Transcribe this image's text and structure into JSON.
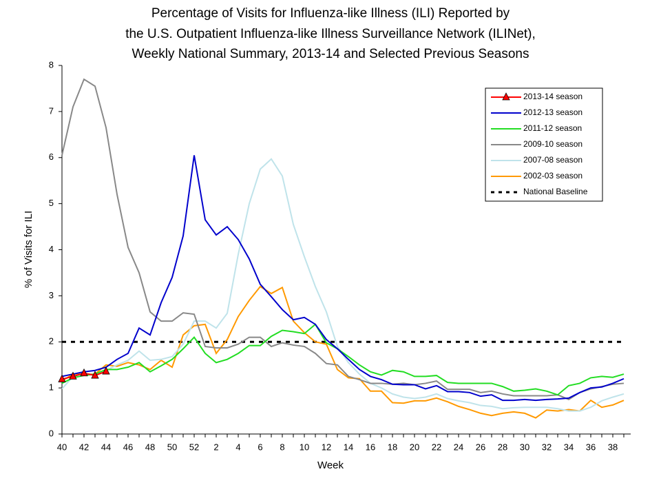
{
  "chart_data": {
    "type": "line",
    "title": [
      "Percentage of Visits for Influenza-like Illness (ILI) Reported by",
      "the U.S. Outpatient Influenza-like Illness Surveillance Network (ILINet),",
      "Weekly National Summary, 2013-14 and Selected Previous Seasons"
    ],
    "y_label": "% of Visits for ILI",
    "x_label": "Week",
    "categories": [
      "40",
      null,
      "42",
      null,
      "44",
      null,
      "46",
      null,
      "48",
      null,
      "50",
      null,
      "52",
      null,
      "2",
      null,
      "4",
      null,
      "6",
      null,
      "8",
      null,
      "10",
      null,
      "12",
      null,
      "14",
      null,
      "16",
      null,
      "18",
      null,
      "20",
      null,
      "22",
      null,
      "24",
      null,
      "26",
      null,
      "28",
      null,
      "30",
      null,
      "32",
      null,
      "34",
      null,
      "36",
      null,
      "38",
      null
    ],
    "ylim": [
      0,
      8
    ],
    "yticks": [
      0,
      1,
      2,
      3,
      4,
      5,
      6,
      7,
      8
    ],
    "legend": "top-right",
    "series": [
      {
        "name": "2013-14 season",
        "color": "#ff0000",
        "marker": "triangle",
        "values": [
          1.19,
          1.25,
          1.32,
          1.27,
          1.36,
          null,
          null,
          null,
          null,
          null,
          null,
          null,
          null,
          null,
          null,
          null,
          null,
          null,
          null,
          null,
          null,
          null,
          null,
          null,
          null,
          null,
          null,
          null,
          null,
          null,
          null,
          null,
          null,
          null,
          null,
          null,
          null,
          null,
          null,
          null,
          null,
          null,
          null,
          null,
          null,
          null,
          null,
          null,
          null,
          null,
          null,
          null
        ]
      },
      {
        "name": "2012-13 season",
        "color": "#0000cc",
        "values": [
          1.25,
          1.3,
          1.35,
          1.38,
          1.45,
          1.62,
          1.75,
          2.3,
          2.15,
          2.85,
          3.4,
          4.3,
          6.05,
          4.65,
          4.32,
          4.5,
          4.22,
          3.8,
          3.25,
          2.98,
          2.7,
          2.48,
          2.53,
          2.38,
          2.05,
          1.85,
          1.62,
          1.4,
          1.25,
          1.18,
          1.08,
          1.07,
          1.07,
          0.98,
          1.05,
          0.92,
          0.92,
          0.9,
          0.82,
          0.85,
          0.73,
          0.73,
          0.75,
          0.73,
          0.75,
          0.76,
          0.78,
          0.9,
          1.0,
          1.02,
          1.1,
          1.2
        ]
      },
      {
        "name": "2011-12 season",
        "color": "#22dd22",
        "values": [
          1.1,
          1.22,
          1.27,
          1.3,
          1.4,
          1.4,
          1.45,
          1.55,
          1.35,
          1.48,
          1.62,
          1.85,
          2.1,
          1.75,
          1.55,
          1.62,
          1.75,
          1.92,
          1.92,
          2.12,
          2.25,
          2.22,
          2.18,
          2.38,
          1.98,
          1.85,
          1.68,
          1.5,
          1.35,
          1.28,
          1.38,
          1.35,
          1.25,
          1.25,
          1.27,
          1.12,
          1.1,
          1.1,
          1.1,
          1.1,
          1.03,
          0.93,
          0.95,
          0.98,
          0.93,
          0.85,
          1.05,
          1.1,
          1.22,
          1.25,
          1.23,
          1.3
        ]
      },
      {
        "name": "2009-10 season",
        "color": "#888888",
        "values": [
          6.05,
          7.1,
          7.7,
          7.55,
          6.65,
          5.2,
          4.05,
          3.5,
          2.65,
          2.45,
          2.45,
          2.63,
          2.6,
          1.9,
          1.87,
          1.87,
          1.95,
          2.1,
          2.1,
          1.9,
          1.98,
          1.93,
          1.9,
          1.75,
          1.53,
          1.5,
          1.25,
          1.18,
          1.1,
          1.1,
          1.08,
          1.1,
          1.07,
          1.1,
          1.15,
          0.97,
          0.97,
          0.97,
          0.9,
          0.93,
          0.87,
          0.83,
          0.83,
          0.83,
          0.83,
          0.85,
          0.75,
          0.9,
          0.98,
          1.03,
          1.08,
          1.1
        ]
      },
      {
        "name": "2007-08 season",
        "color": "#bfe3ea",
        "values": [
          0.98,
          1.25,
          1.28,
          1.3,
          1.38,
          1.5,
          1.6,
          1.8,
          1.6,
          1.62,
          1.68,
          1.95,
          2.45,
          2.45,
          2.3,
          2.62,
          3.9,
          5.0,
          5.75,
          5.97,
          5.6,
          4.55,
          3.85,
          3.2,
          2.65,
          1.9,
          1.55,
          1.3,
          1.1,
          1.0,
          0.87,
          0.8,
          0.77,
          0.8,
          0.87,
          0.77,
          0.72,
          0.68,
          0.62,
          0.6,
          0.55,
          0.57,
          0.58,
          0.58,
          0.58,
          0.55,
          0.5,
          0.5,
          0.58,
          0.72,
          0.8,
          0.87
        ]
      },
      {
        "name": "2002-03 season",
        "color": "#ff9900",
        "values": [
          1.15,
          1.3,
          1.3,
          1.3,
          1.5,
          1.47,
          1.55,
          1.5,
          1.4,
          1.6,
          1.45,
          2.15,
          2.35,
          2.38,
          1.75,
          2.05,
          2.55,
          2.9,
          3.2,
          3.05,
          3.18,
          2.45,
          2.2,
          2.0,
          1.95,
          1.4,
          1.22,
          1.2,
          0.93,
          0.93,
          0.68,
          0.67,
          0.72,
          0.72,
          0.78,
          0.7,
          0.6,
          0.53,
          0.45,
          0.4,
          0.45,
          0.48,
          0.45,
          0.35,
          0.52,
          0.5,
          0.53,
          0.5,
          0.73,
          0.58,
          0.63,
          0.73
        ]
      }
    ],
    "baseline": {
      "name": "National Baseline",
      "value": 2.0,
      "color": "#000000"
    }
  }
}
